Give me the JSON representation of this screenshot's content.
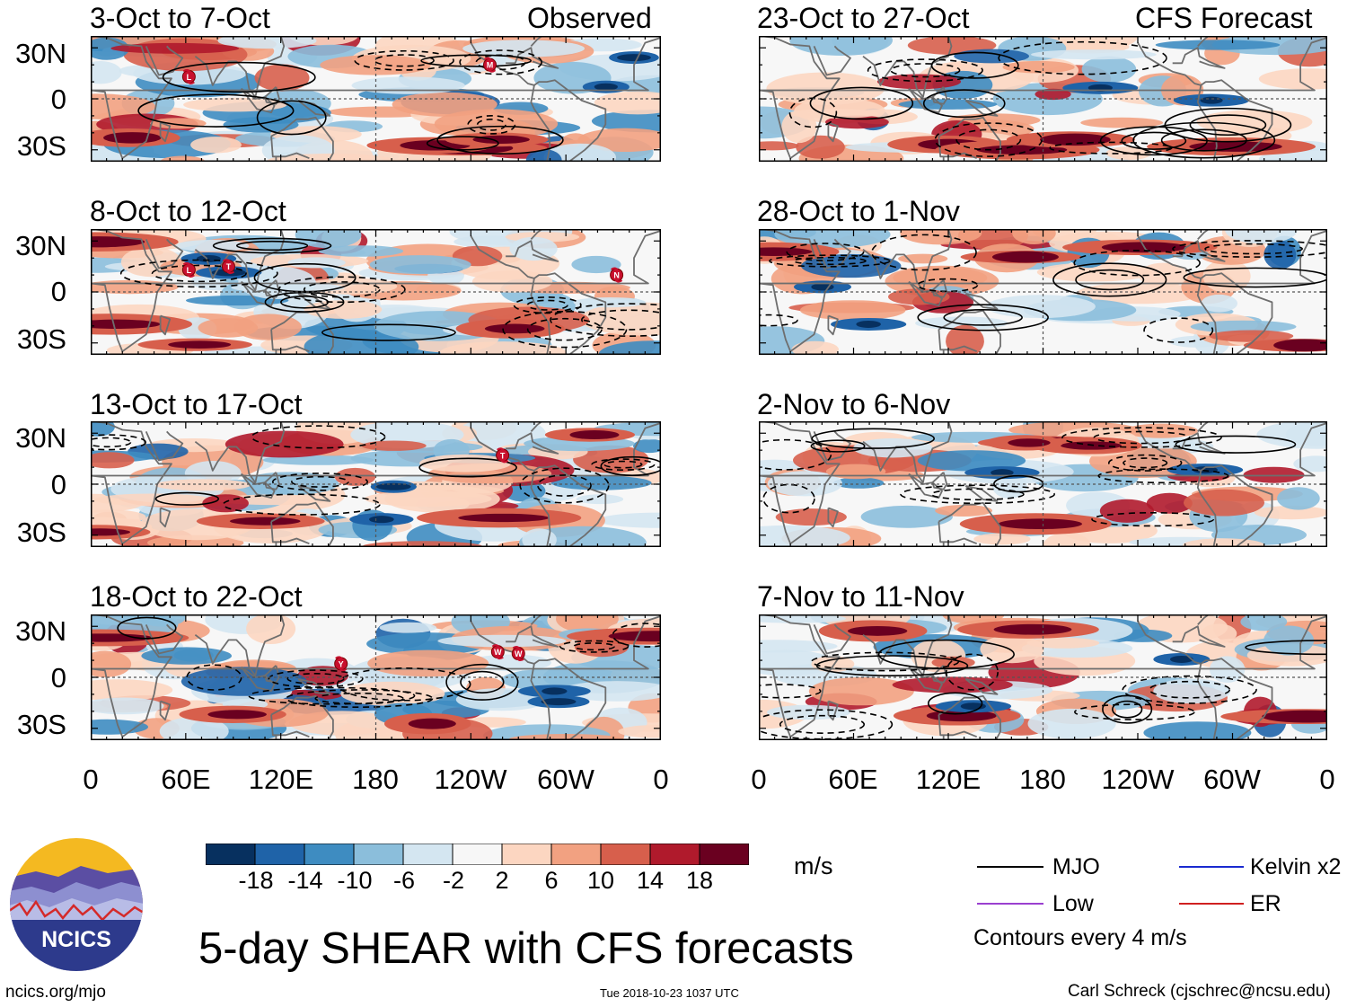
{
  "title": "5-day SHEAR with CFS forecasts",
  "observed_label": "Observed",
  "forecast_label": "CFS Forecast",
  "panels_left": [
    {
      "period": "3-Oct to 7-Oct",
      "storms": [
        {
          "letter": "L",
          "lon": 62,
          "lat": 13
        },
        {
          "letter": "M",
          "lon": 252,
          "lat": 20
        }
      ]
    },
    {
      "period": "8-Oct to 12-Oct",
      "storms": [
        {
          "letter": "L",
          "lon": 62,
          "lat": 13
        },
        {
          "letter": "T",
          "lon": 87,
          "lat": 15
        },
        {
          "letter": "N",
          "lon": 332,
          "lat": 10
        }
      ]
    },
    {
      "period": "13-Oct to 17-Oct",
      "storms": [
        {
          "letter": "T",
          "lon": 260,
          "lat": 17
        }
      ]
    },
    {
      "period": "18-Oct to 22-Oct",
      "storms": [
        {
          "letter": "Y",
          "lon": 158,
          "lat": 8
        },
        {
          "letter": "W",
          "lon": 257,
          "lat": 15
        },
        {
          "letter": "W",
          "lon": 270,
          "lat": 14
        }
      ]
    }
  ],
  "panels_right": [
    {
      "period": "23-Oct to 27-Oct"
    },
    {
      "period": "28-Oct to 1-Nov"
    },
    {
      "period": "2-Nov to 6-Nov"
    },
    {
      "period": "7-Nov to 11-Nov"
    }
  ],
  "yticks": [
    "30N",
    "0",
    "30S"
  ],
  "xticks": [
    "0",
    "60E",
    "120E",
    "180",
    "120W",
    "60W",
    "0"
  ],
  "colorbar": {
    "labels": [
      "-18",
      "-14",
      "-10",
      "-6",
      "-2",
      "2",
      "6",
      "10",
      "14",
      "18"
    ],
    "colors": [
      "#07305f",
      "#1f63a8",
      "#3e8cc1",
      "#8bbedb",
      "#d4e6f1",
      "#f7f7f7",
      "#fcd6c1",
      "#f2a181",
      "#d75f4c",
      "#b01a2c",
      "#6a0020"
    ],
    "units": "m/s"
  },
  "legend": [
    {
      "label": "MJO",
      "color": "#000000"
    },
    {
      "label": "Kelvin x2",
      "color": "#1a2ad0"
    },
    {
      "label": "Low",
      "color": "#9a40d0"
    },
    {
      "label": "ER",
      "color": "#d02020"
    }
  ],
  "contour_note": "Contours every 4 m/s",
  "logo_text": "NCICS",
  "url": "ncics.org/mjo",
  "timestamp": "Tue 2018-10-23 1037 UTC",
  "author": "Carl Schreck (cjschrec@ncsu.edu)"
}
